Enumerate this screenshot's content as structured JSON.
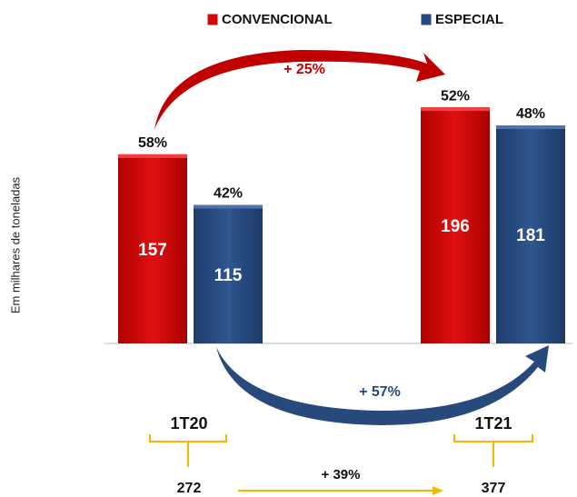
{
  "chart_data": {
    "type": "bar",
    "y_axis_label": "Em milhares de toneladas",
    "categories": [
      "1T20",
      "1T21"
    ],
    "series": [
      {
        "name": "CONVENCIONAL",
        "color": "#d00a0a",
        "values": [
          157,
          196
        ],
        "shares": [
          "58%",
          "52%"
        ]
      },
      {
        "name": "ESPECIAL",
        "color": "#27497c",
        "values": [
          115,
          181
        ],
        "shares": [
          "42%",
          "48%"
        ]
      }
    ],
    "annotations": {
      "convencional_change": "+ 25%",
      "especial_change": "+ 57%",
      "total_change": "+ 39%"
    },
    "totals": [
      272,
      377
    ]
  }
}
